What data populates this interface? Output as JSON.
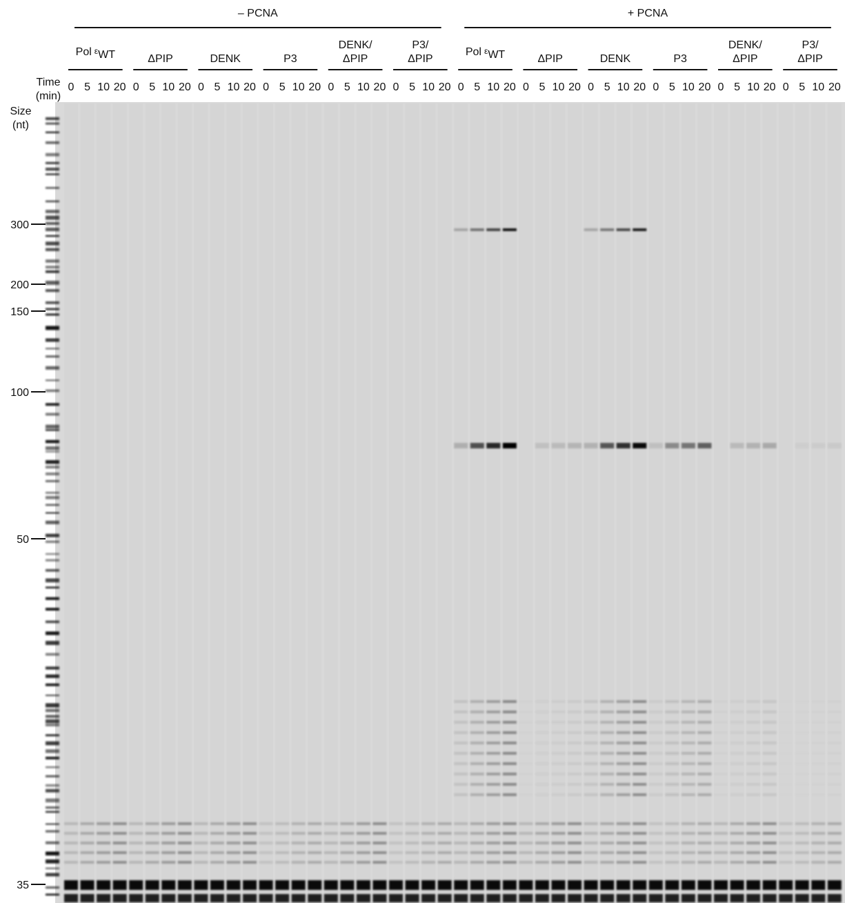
{
  "header": {
    "time_label": [
      "Time",
      "(min)"
    ],
    "size_label": [
      "Size",
      "(nt)"
    ]
  },
  "groups": [
    {
      "label": "– PCNA",
      "constructs": [
        {
          "parts": [
            "Pol",
            "ε",
            "WT"
          ]
        },
        {
          "lines": [
            "ΔPIP"
          ]
        },
        {
          "lines": [
            "DENK"
          ]
        },
        {
          "lines": [
            "P3"
          ]
        },
        {
          "lines": [
            "DENK/",
            "ΔPIP"
          ]
        },
        {
          "lines": [
            "P3/",
            "ΔPIP"
          ]
        }
      ]
    },
    {
      "label": "+ PCNA",
      "constructs": [
        {
          "parts": [
            "Pol",
            "ε",
            "WT"
          ]
        },
        {
          "lines": [
            "ΔPIP"
          ]
        },
        {
          "lines": [
            "DENK"
          ]
        },
        {
          "lines": [
            "P3"
          ]
        },
        {
          "lines": [
            "DENK/",
            "ΔPIP"
          ]
        },
        {
          "lines": [
            "P3/",
            "ΔPIP"
          ]
        }
      ]
    }
  ],
  "time_points": [
    "0",
    "5",
    "10",
    "20"
  ],
  "size_markers": [
    "300",
    "200",
    "150",
    "100",
    "50",
    "35"
  ]
}
